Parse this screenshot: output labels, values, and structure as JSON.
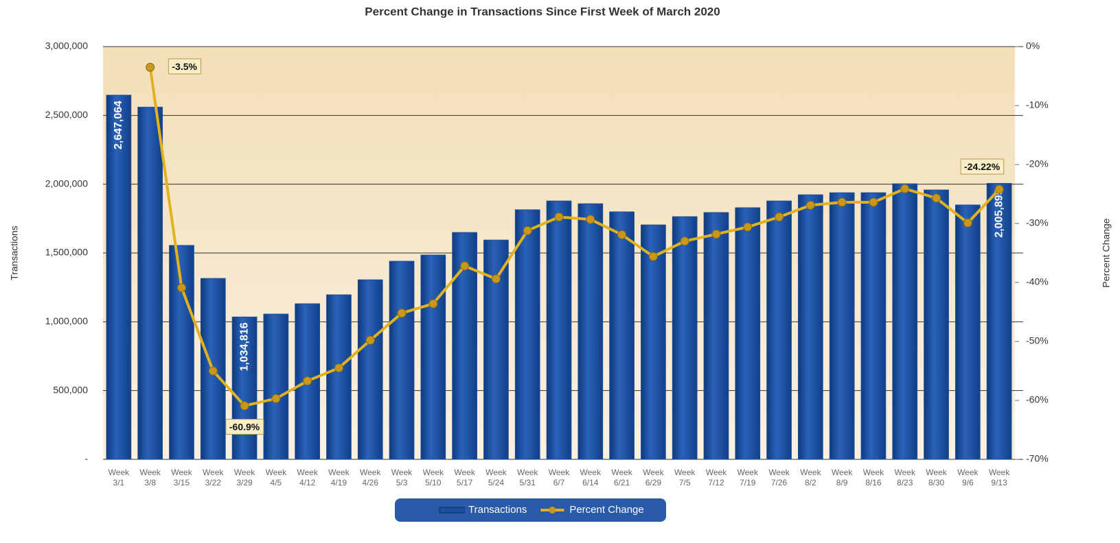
{
  "chart_data": {
    "type": "bar",
    "title": "Percent Change in Transactions Since First Week of March 2020",
    "y_label": "Transactions",
    "y2_label": "Percent Change",
    "categories": [
      "Week 3/1",
      "Week 3/8",
      "Week 3/15",
      "Week 3/22",
      "Week 3/29",
      "Week 4/5",
      "Week 4/12",
      "Week 4/19",
      "Week 4/26",
      "Week 5/3",
      "Week 5/10",
      "Week 5/17",
      "Week 5/24",
      "Week 5/31",
      "Week 6/7",
      "Week 6/14",
      "Week 6/21",
      "Week 6/29",
      "Week 7/5",
      "Week 7/12",
      "Week 7/19",
      "Week 7/26",
      "Week 8/2",
      "Week 8/9",
      "Week 8/16",
      "Week 8/23",
      "Week 8/30",
      "Week 9/6",
      "Week 9/13"
    ],
    "series": [
      {
        "name": "Transactions",
        "type": "bar",
        "color": "#1c4f9e",
        "values": [
          2647064,
          2560000,
          1555000,
          1315000,
          1034816,
          1056000,
          1131000,
          1196000,
          1305000,
          1440000,
          1485000,
          1649000,
          1594000,
          1814000,
          1878000,
          1858000,
          1799000,
          1704000,
          1764000,
          1794000,
          1829000,
          1878000,
          1923000,
          1938000,
          1938000,
          2003000,
          1958000,
          1849000,
          2005895
        ],
        "value_labels": [
          "2,647,064",
          null,
          null,
          null,
          "1,034,816",
          null,
          null,
          null,
          null,
          null,
          null,
          null,
          null,
          null,
          null,
          null,
          null,
          null,
          null,
          null,
          null,
          null,
          null,
          null,
          null,
          null,
          null,
          null,
          "2,005,895"
        ]
      },
      {
        "name": "Percent Change",
        "type": "line",
        "axis": "y2",
        "color": "#e2b21e",
        "values": [
          null,
          -3.5,
          -40.9,
          -55.0,
          -60.9,
          -59.7,
          -56.7,
          -54.5,
          -49.8,
          -45.2,
          -43.6,
          -37.2,
          -39.4,
          -31.2,
          -28.9,
          -29.3,
          -31.9,
          -35.6,
          -33.0,
          -31.8,
          -30.6,
          -28.9,
          -26.9,
          -26.4,
          -26.4,
          -24.1,
          -25.7,
          -29.9,
          -24.22
        ],
        "value_labels": [
          null,
          "-3.5%",
          null,
          null,
          "-60.9%",
          null,
          null,
          null,
          null,
          null,
          null,
          null,
          null,
          null,
          null,
          null,
          null,
          null,
          null,
          null,
          null,
          null,
          null,
          null,
          null,
          null,
          null,
          null,
          "-24.22%"
        ]
      }
    ],
    "ylim": [
      0,
      3000000
    ],
    "yticks": [
      {
        "value": 0,
        "label": "-"
      },
      {
        "value": 500000,
        "label": "500,000"
      },
      {
        "value": 1000000,
        "label": "1,000,000"
      },
      {
        "value": 1500000,
        "label": "1,500,000"
      },
      {
        "value": 2000000,
        "label": "2,000,000"
      },
      {
        "value": 2500000,
        "label": "2,500,000"
      },
      {
        "value": 3000000,
        "label": "3,000,000"
      }
    ],
    "y2lim": [
      -70,
      0
    ],
    "y2ticks": [
      {
        "value": -70,
        "label": "-70%"
      },
      {
        "value": -60,
        "label": "-60%"
      },
      {
        "value": -50,
        "label": "-50%"
      },
      {
        "value": -40,
        "label": "-40%"
      },
      {
        "value": -30,
        "label": "-30%"
      },
      {
        "value": -20,
        "label": "-20%"
      },
      {
        "value": -10,
        "label": "-10%"
      },
      {
        "value": 0,
        "label": "0%"
      }
    ],
    "grid": true,
    "legend": "bottom"
  }
}
